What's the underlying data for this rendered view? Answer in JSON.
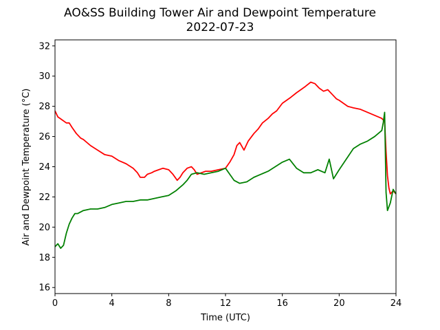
{
  "chart_data": {
    "type": "line",
    "title": "AO&SS Building Tower Air and Dewpoint Temperature",
    "subtitle": "2022-07-23",
    "xlabel": "Time (UTC)",
    "ylabel": "Air and Dewpoint Temperature (°C)",
    "xlim": [
      0,
      24
    ],
    "ylim": [
      15.6,
      32.4
    ],
    "xticks": [
      0,
      4,
      8,
      12,
      16,
      20,
      24
    ],
    "yticks": [
      16,
      18,
      20,
      22,
      24,
      26,
      28,
      30,
      32
    ],
    "grid": false,
    "legend": "none",
    "series": [
      {
        "color": "#ff0000",
        "x": [
          0.0,
          0.2,
          0.5,
          0.8,
          1.0,
          1.2,
          1.5,
          1.8,
          2.0,
          2.5,
          3.0,
          3.5,
          4.0,
          4.5,
          5.0,
          5.5,
          5.8,
          6.0,
          6.3,
          6.5,
          6.8,
          7.0,
          7.3,
          7.6,
          8.0,
          8.3,
          8.6,
          8.8,
          9.0,
          9.3,
          9.6,
          9.8,
          10.0,
          10.3,
          10.6,
          11.0,
          11.5,
          12.0,
          12.3,
          12.6,
          12.8,
          13.0,
          13.3,
          13.6,
          14.0,
          14.3,
          14.6,
          15.0,
          15.3,
          15.6,
          16.0,
          16.3,
          16.6,
          17.0,
          17.3,
          17.6,
          18.0,
          18.3,
          18.6,
          18.9,
          19.2,
          19.5,
          19.8,
          20.0,
          20.3,
          20.6,
          21.0,
          21.5,
          22.0,
          22.5,
          23.0,
          23.2,
          23.3,
          23.4,
          23.5,
          23.6,
          23.8,
          24.0
        ],
        "y": [
          27.7,
          27.3,
          27.1,
          26.9,
          26.9,
          26.6,
          26.2,
          25.9,
          25.8,
          25.4,
          25.1,
          24.8,
          24.7,
          24.4,
          24.2,
          23.9,
          23.6,
          23.3,
          23.3,
          23.5,
          23.6,
          23.7,
          23.8,
          23.9,
          23.8,
          23.5,
          23.1,
          23.3,
          23.6,
          23.9,
          24.0,
          23.8,
          23.5,
          23.6,
          23.7,
          23.7,
          23.8,
          23.9,
          24.3,
          24.8,
          25.4,
          25.6,
          25.1,
          25.7,
          26.2,
          26.5,
          26.9,
          27.2,
          27.5,
          27.7,
          28.2,
          28.4,
          28.6,
          28.9,
          29.1,
          29.3,
          29.6,
          29.5,
          29.2,
          29.0,
          29.1,
          28.8,
          28.5,
          28.4,
          28.2,
          28.0,
          27.9,
          27.8,
          27.6,
          27.4,
          27.2,
          27.0,
          25.0,
          23.4,
          22.6,
          22.2,
          22.4,
          22.2
        ]
      },
      {
        "color": "#008000",
        "x": [
          0.0,
          0.2,
          0.4,
          0.6,
          0.8,
          1.0,
          1.2,
          1.4,
          1.6,
          2.0,
          2.5,
          3.0,
          3.5,
          4.0,
          4.5,
          5.0,
          5.5,
          6.0,
          6.5,
          7.0,
          7.5,
          8.0,
          8.5,
          9.0,
          9.3,
          9.6,
          10.0,
          10.5,
          11.0,
          11.5,
          12.0,
          12.3,
          12.6,
          13.0,
          13.5,
          14.0,
          14.5,
          15.0,
          15.5,
          16.0,
          16.5,
          17.0,
          17.5,
          18.0,
          18.5,
          19.0,
          19.3,
          19.6,
          20.0,
          20.5,
          21.0,
          21.5,
          22.0,
          22.5,
          23.0,
          23.1,
          23.2,
          23.25,
          23.3,
          23.4,
          23.6,
          23.8,
          24.0
        ],
        "y": [
          18.7,
          18.9,
          18.6,
          18.8,
          19.6,
          20.2,
          20.6,
          20.9,
          20.9,
          21.1,
          21.2,
          21.2,
          21.3,
          21.5,
          21.6,
          21.7,
          21.7,
          21.8,
          21.8,
          21.9,
          22.0,
          22.1,
          22.4,
          22.8,
          23.1,
          23.5,
          23.6,
          23.5,
          23.6,
          23.7,
          23.9,
          23.5,
          23.1,
          22.9,
          23.0,
          23.3,
          23.5,
          23.7,
          24.0,
          24.3,
          24.5,
          23.9,
          23.6,
          23.6,
          23.8,
          23.6,
          24.5,
          23.2,
          23.8,
          24.5,
          25.2,
          25.5,
          25.7,
          26.0,
          26.4,
          26.9,
          27.6,
          25.0,
          22.3,
          21.1,
          21.6,
          22.5,
          22.2
        ]
      }
    ]
  }
}
